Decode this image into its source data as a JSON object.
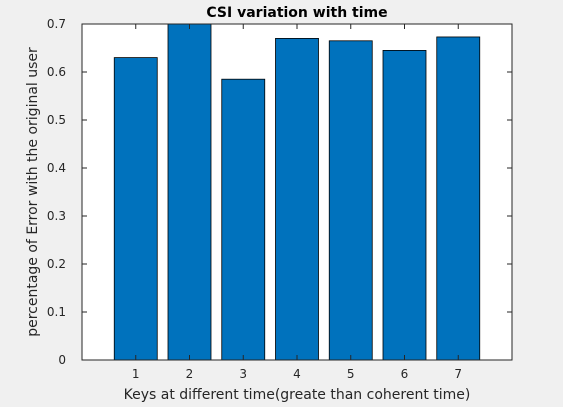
{
  "chart_data": {
    "type": "bar",
    "title": "CSI variation with time",
    "xlabel": "Keys at different time(greate than coherent time)",
    "ylabel": "percentage of Error with the original user",
    "categories": [
      "1",
      "2",
      "3",
      "4",
      "5",
      "6",
      "7"
    ],
    "values": [
      0.63,
      0.7,
      0.585,
      0.67,
      0.665,
      0.645,
      0.673
    ],
    "xlim": [
      0,
      8
    ],
    "ylim": [
      0,
      0.7
    ],
    "yticks": [
      "0",
      "0.1",
      "0.2",
      "0.3",
      "0.4",
      "0.5",
      "0.6",
      "0.7"
    ],
    "grid": false,
    "bar_color": "#0072BD",
    "bar_edge_color": "#000000",
    "axes_background": "#ffffff",
    "figure_background": "#f0f0f0"
  }
}
